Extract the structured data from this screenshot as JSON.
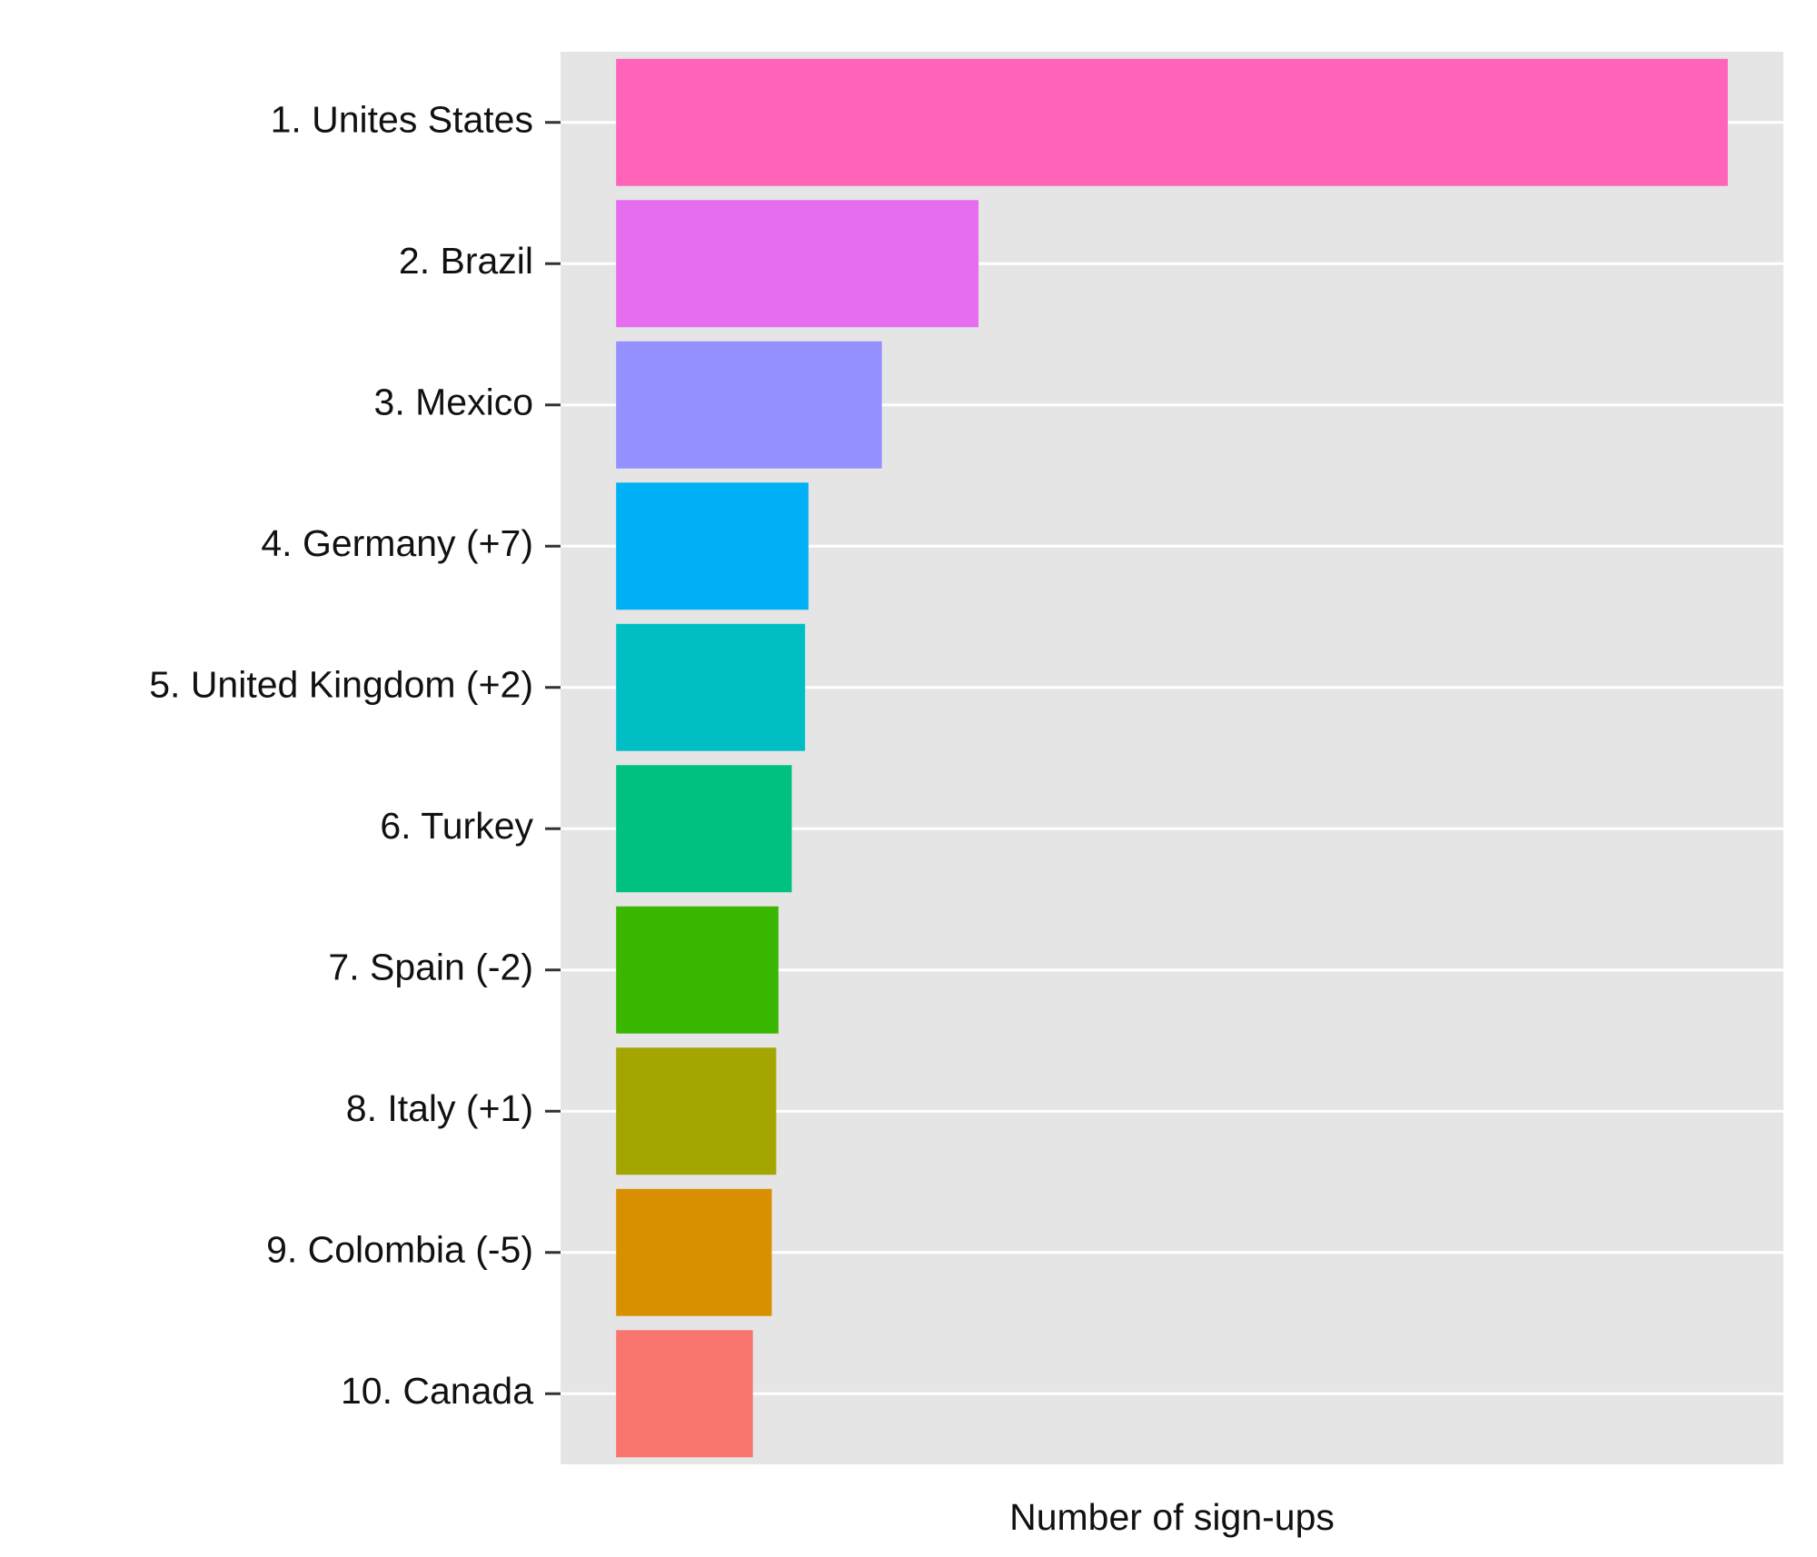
{
  "chart_data": {
    "type": "barh",
    "xlabel": "Number of sign-ups",
    "categories": [
      "1. Unites States",
      "2. Brazil",
      "3. Mexico",
      "4. Germany (+7)",
      "5. United Kingdom (+2)",
      "6. Turkey",
      "7. Spain (-2)",
      "8. Italy (+1)",
      "9. Colombia (-5)",
      "10. Canada"
    ],
    "values": [
      100,
      32.6,
      23.9,
      17.3,
      17.0,
      15.8,
      14.6,
      14.4,
      14.0,
      12.3
    ],
    "colors": [
      "#ff64b9",
      "#e66cf0",
      "#9590ff",
      "#00b0f6",
      "#00bfc4",
      "#00c17f",
      "#39b600",
      "#a3a500",
      "#d89000",
      "#f8766d"
    ],
    "xlim": [
      -5,
      105
    ],
    "grid": true
  }
}
